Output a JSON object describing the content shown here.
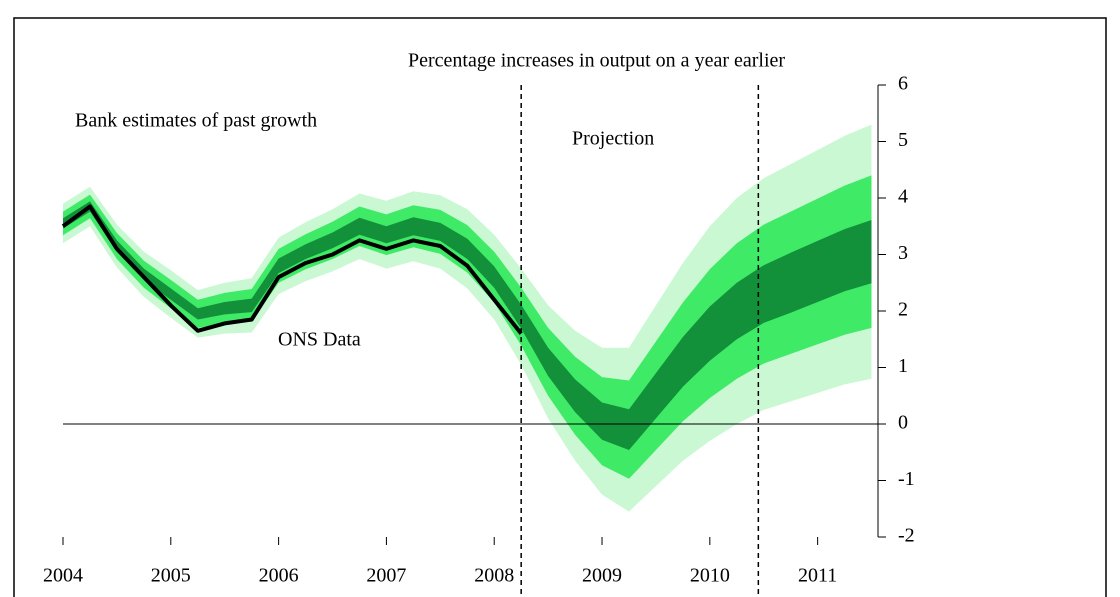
{
  "chart_data": {
    "type": "fan",
    "annotations": [
      "Percentage increases in output on a year earlier",
      "Bank estimates of past growth",
      "Projection",
      "ONS Data"
    ],
    "x": [
      2004.0,
      2004.25,
      2004.5,
      2004.75,
      2005.0,
      2005.25,
      2005.5,
      2005.75,
      2006.0,
      2006.25,
      2006.5,
      2006.75,
      2007.0,
      2007.25,
      2007.5,
      2007.75,
      2008.0,
      2008.25,
      2008.5,
      2008.75,
      2009.0,
      2009.25,
      2009.5,
      2009.75,
      2010.0,
      2010.25,
      2010.5,
      2010.75,
      2011.0,
      2011.25,
      2011.5
    ],
    "bands": [
      {
        "color": "#c9f8d3",
        "upper": [
          3.9,
          4.2,
          3.53,
          3.05,
          2.72,
          2.37,
          2.5,
          2.58,
          3.3,
          3.57,
          3.8,
          4.08,
          3.95,
          4.12,
          4.05,
          3.8,
          3.35,
          2.75,
          2.1,
          1.65,
          1.35,
          1.35,
          2.1,
          2.85,
          3.5,
          4.0,
          4.35,
          4.6,
          4.85,
          5.1,
          5.3
        ],
        "lower": [
          3.2,
          3.5,
          2.77,
          2.25,
          1.88,
          1.53,
          1.6,
          1.62,
          2.3,
          2.53,
          2.7,
          2.92,
          2.75,
          2.88,
          2.75,
          2.4,
          1.85,
          1.05,
          0.1,
          -0.65,
          -1.25,
          -1.55,
          -1.1,
          -0.65,
          -0.3,
          0,
          0.25,
          0.4,
          0.55,
          0.7,
          0.8
        ]
      },
      {
        "color": "#3fea66",
        "upper": [
          3.76,
          4.06,
          3.38,
          2.89,
          2.55,
          2.2,
          2.32,
          2.39,
          3.1,
          3.36,
          3.58,
          3.85,
          3.71,
          3.87,
          3.79,
          3.52,
          3.05,
          2.41,
          1.7,
          1.19,
          0.83,
          0.77,
          1.46,
          2.15,
          2.74,
          3.2,
          3.53,
          3.76,
          3.99,
          4.22,
          4.4
        ],
        "lower": [
          3.34,
          3.64,
          2.92,
          2.41,
          2.05,
          1.7,
          1.78,
          1.81,
          2.5,
          2.74,
          2.92,
          3.15,
          2.99,
          3.13,
          3.01,
          2.68,
          2.15,
          1.39,
          0.5,
          -0.19,
          -0.73,
          -0.97,
          -0.46,
          0.05,
          0.46,
          0.8,
          1.07,
          1.24,
          1.41,
          1.58,
          1.7
        ]
      },
      {
        "color": "#12903a",
        "upper": [
          3.64,
          3.94,
          3.25,
          2.75,
          2.4,
          2.05,
          2.16,
          2.22,
          2.93,
          3.18,
          3.39,
          3.65,
          3.5,
          3.66,
          3.56,
          3.28,
          2.79,
          2.11,
          1.35,
          0.79,
          0.38,
          0.26,
          0.9,
          1.54,
          2.08,
          2.5,
          2.81,
          3.03,
          3.24,
          3.45,
          3.61
        ],
        "lower": [
          3.46,
          3.76,
          3.05,
          2.55,
          2.2,
          1.85,
          1.94,
          1.98,
          2.67,
          2.92,
          3.11,
          3.35,
          3.2,
          3.34,
          3.24,
          2.92,
          2.41,
          1.69,
          0.85,
          0.21,
          -0.28,
          -0.46,
          0.1,
          0.66,
          1.12,
          1.5,
          1.79,
          1.97,
          2.16,
          2.35,
          2.49
        ]
      }
    ],
    "line": {
      "color": "#000000",
      "values": [
        3.5,
        3.85,
        3.1,
        2.6,
        2.1,
        1.65,
        1.78,
        1.85,
        2.6,
        2.85,
        3.0,
        3.25,
        3.1,
        3.25,
        3.15,
        2.8,
        2.2,
        1.6,
        null,
        null,
        null,
        null,
        null,
        null,
        null,
        null,
        null,
        null,
        null,
        null,
        null
      ]
    },
    "vlines": [
      2008.25,
      2010.45
    ],
    "xlim": [
      2004,
      2011.56
    ],
    "xticks": [
      2004,
      2005,
      2006,
      2007,
      2008,
      2009,
      2010,
      2011
    ],
    "ylim": [
      -2,
      6
    ],
    "yticks": [
      -2,
      -1,
      0,
      1,
      2,
      3,
      4,
      5,
      6
    ]
  }
}
